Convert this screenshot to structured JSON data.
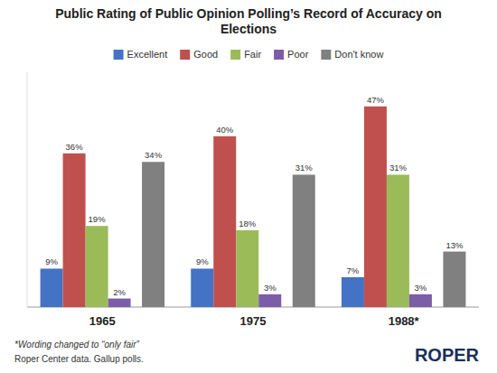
{
  "chart_data": {
    "type": "bar",
    "title": "Public Rating of Public Opinion Polling’s Record of Accuracy on\nElections",
    "categories": [
      "1965",
      "1975",
      "1988*"
    ],
    "series": [
      {
        "name": "Excellent",
        "color": "#4472C4",
        "values": [
          9,
          9,
          7
        ],
        "value_labels": [
          "9%",
          "9%",
          "7%"
        ]
      },
      {
        "name": "Good",
        "color": "#C0504D",
        "values": [
          36,
          40,
          47
        ],
        "value_labels": [
          "36%",
          "40%",
          "47%"
        ]
      },
      {
        "name": "Fair",
        "color": "#9BBB59",
        "values": [
          19,
          18,
          31
        ],
        "value_labels": [
          "19%",
          "18%",
          "31%"
        ]
      },
      {
        "name": "Poor",
        "color": "#7B5EA7",
        "values": [
          2,
          3,
          3
        ],
        "value_labels": [
          "2%",
          "3%",
          "3%"
        ]
      },
      {
        "name": "Don't know",
        "color": "#808080",
        "values": [
          34,
          31,
          13
        ],
        "value_labels": [
          "34%",
          "31%",
          "13%"
        ]
      }
    ],
    "ylim": [
      0,
      55
    ],
    "tick_labels": "x",
    "grid": false,
    "legend": "top",
    "data_labels": true,
    "annotations": [
      "*Wording changed to “only fair”",
      "Roper Center data. Gallup polls.",
      "ROPER"
    ]
  }
}
